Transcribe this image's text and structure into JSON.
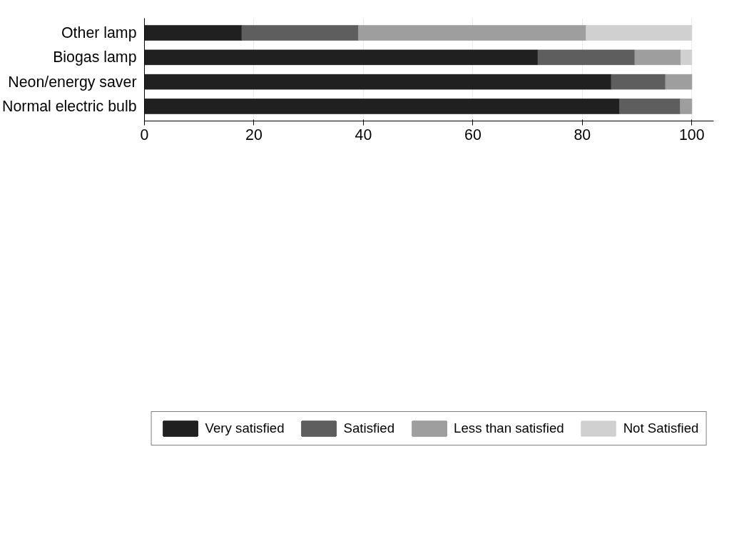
{
  "chart_data": {
    "type": "bar",
    "orientation": "horizontal",
    "stacked": true,
    "categories": [
      "Other lamp",
      "Biogas lamp",
      "Neon/energy saver",
      "Normal electric bulb"
    ],
    "series": [
      {
        "name": "Very satisfied",
        "color": "#202020",
        "values": [
          17.8,
          71.9,
          85.3,
          86.8
        ]
      },
      {
        "name": "Satisfied",
        "color": "#5e5e5e",
        "values": [
          21.3,
          17.7,
          9.9,
          11.1
        ]
      },
      {
        "name": "Less than satisfied",
        "color": "#9e9e9e",
        "values": [
          41.6,
          8.4,
          4.8,
          2.1
        ]
      },
      {
        "name": "Not Satisfied",
        "color": "#d0d0d0",
        "values": [
          19.3,
          2.0,
          null,
          null
        ]
      }
    ],
    "xlim": [
      0,
      104
    ],
    "xticks": [
      0,
      20,
      40,
      60,
      80,
      100
    ],
    "grid": "x",
    "legend": "bottom"
  }
}
